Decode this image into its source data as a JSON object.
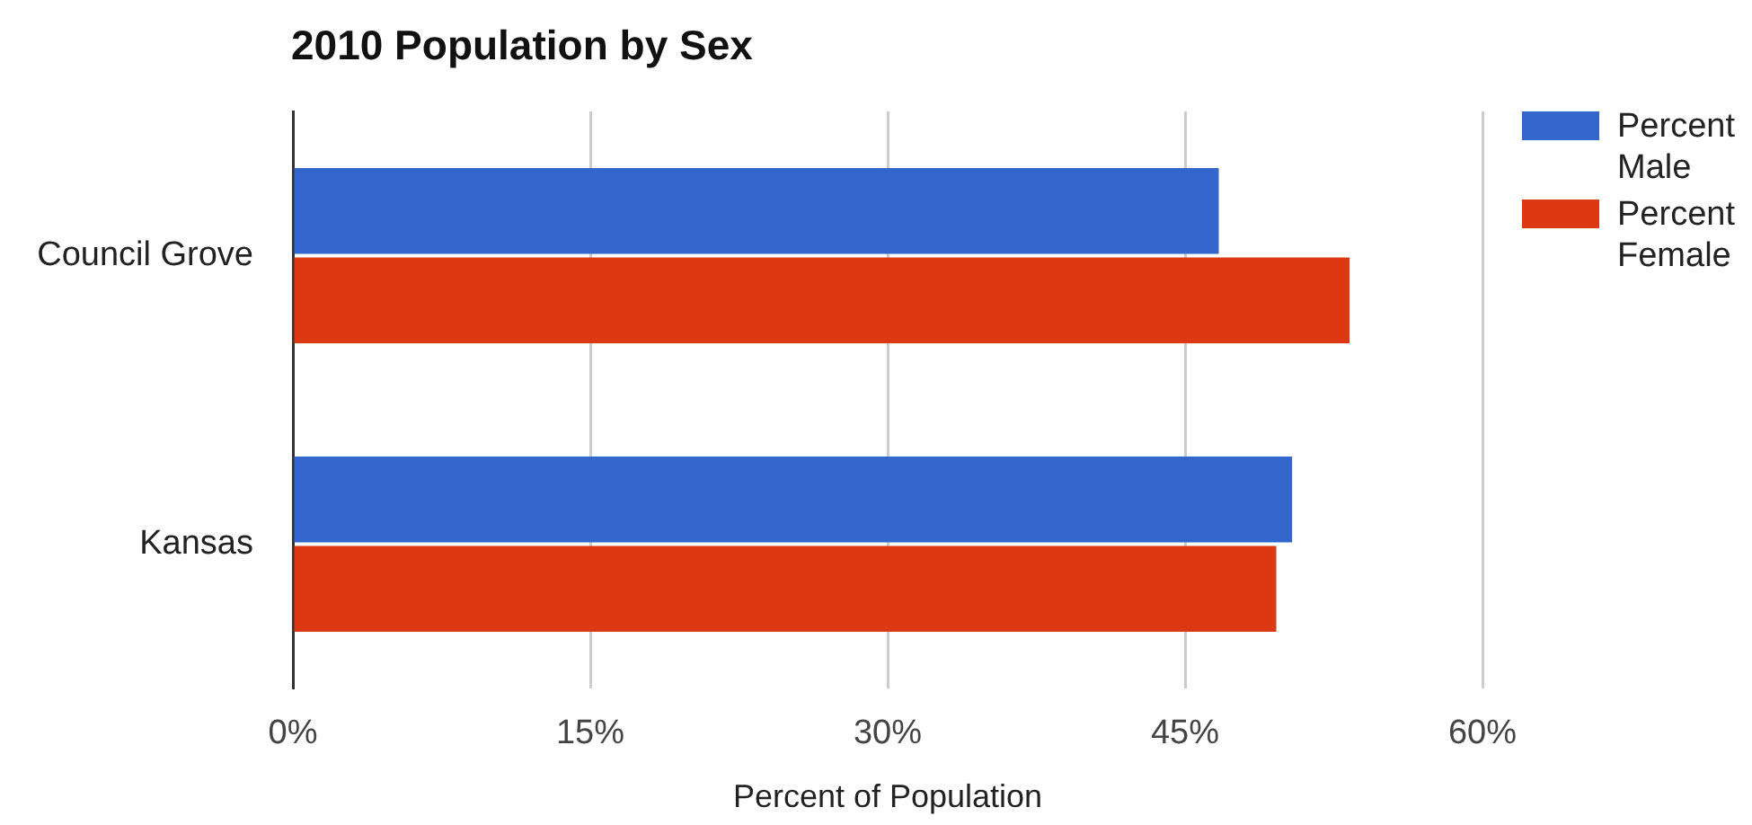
{
  "chart_data": {
    "type": "bar",
    "orientation": "horizontal",
    "title": "2010 Population by Sex",
    "xlabel": "Percent of Population",
    "categories": [
      "Council Grove",
      "Kansas"
    ],
    "series": [
      {
        "name": "Percent Male",
        "color": "#3366cc",
        "values": [
          46.7,
          50.4
        ]
      },
      {
        "name": "Percent Female",
        "color": "#dc3912",
        "values": [
          53.3,
          49.6
        ]
      }
    ],
    "xlim": [
      0,
      60
    ],
    "xticks": [
      {
        "value": 0,
        "label": "0%"
      },
      {
        "value": 15,
        "label": "15%"
      },
      {
        "value": 30,
        "label": "30%"
      },
      {
        "value": 45,
        "label": "45%"
      },
      {
        "value": 60,
        "label": "60%"
      }
    ],
    "grid": "x",
    "legend": "top right"
  }
}
